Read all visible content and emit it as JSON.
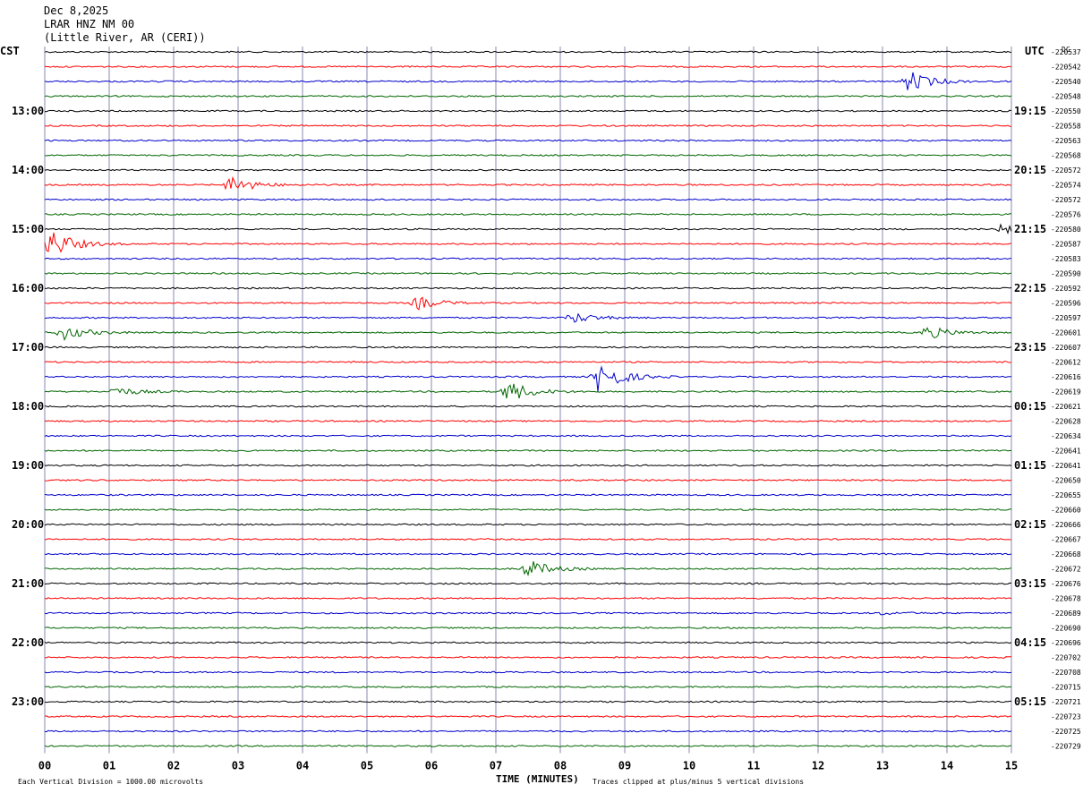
{
  "header": {
    "date": "Dec 8,2025",
    "station": "LRAR HNZ NM 00",
    "location": "(Little River, AR (CERI))"
  },
  "chart_data": {
    "type": "seismogram",
    "left_timezone_label": "CST",
    "right_timezone_label": "UTC",
    "dc_label": "DC",
    "xlabel": "TIME (MINUTES)",
    "x_ticks": [
      "00",
      "01",
      "02",
      "03",
      "04",
      "05",
      "06",
      "07",
      "08",
      "09",
      "10",
      "11",
      "12",
      "13",
      "14",
      "15"
    ],
    "xlim": [
      0,
      15
    ],
    "trace_colors": [
      "#000000",
      "#ff0000",
      "#0000cc",
      "#006600"
    ],
    "cst_hour_labels": [
      "13:00",
      "14:00",
      "15:00",
      "16:00",
      "17:00",
      "18:00",
      "19:00",
      "20:00",
      "21:00",
      "22:00",
      "23:00"
    ],
    "utc_hour_labels": [
      "19:15",
      "20:15",
      "21:15",
      "22:15",
      "23:15",
      "00:15",
      "01:15",
      "02:15",
      "03:15",
      "04:15",
      "05:15"
    ],
    "dc_offsets": [
      "-220537",
      "-220542",
      "-220540",
      "-220548",
      "-220550",
      "-220558",
      "-220563",
      "-220568",
      "-220572",
      "-220574",
      "-220572",
      "-220576",
      "-220580",
      "-220587",
      "-220583",
      "-220590",
      "-220592",
      "-220596",
      "-220597",
      "-220601",
      "-220607",
      "-220612",
      "-220616",
      "-220619",
      "-220621",
      "-220628",
      "-220634",
      "-220641",
      "-220641",
      "-220650",
      "-220655",
      "-220660",
      "-220666",
      "-220667",
      "-220668",
      "-220672",
      "-220676",
      "-220678",
      "-220689",
      "-220690",
      "-220696",
      "-220702",
      "-220708",
      "-220715",
      "-220721",
      "-220723",
      "-220725",
      "-220729"
    ],
    "events": [
      {
        "trace": 2,
        "minute": 13.4,
        "amplitude": 12
      },
      {
        "trace": 9,
        "minute": 2.9,
        "amplitude": 10
      },
      {
        "trace": 12,
        "minute": 14.9,
        "amplitude": 8
      },
      {
        "trace": 13,
        "minute": 0.1,
        "amplitude": 16
      },
      {
        "trace": 17,
        "minute": 5.8,
        "amplitude": 7
      },
      {
        "trace": 18,
        "minute": 8.2,
        "amplitude": 6
      },
      {
        "trace": 19,
        "minute": 0.3,
        "amplitude": 8
      },
      {
        "trace": 19,
        "minute": 13.7,
        "amplitude": 7
      },
      {
        "trace": 22,
        "minute": 8.6,
        "amplitude": 18
      },
      {
        "trace": 23,
        "minute": 7.2,
        "amplitude": 12
      },
      {
        "trace": 23,
        "minute": 1.1,
        "amplitude": 5
      },
      {
        "trace": 35,
        "minute": 7.5,
        "amplitude": 10
      },
      {
        "trace": 38,
        "minute": 13.0,
        "amplitude": 1.5
      }
    ],
    "footer_left": "Each Vertical Division = 1000.00 microvolts",
    "footer_right": "Traces clipped at plus/minus 5 vertical divisions"
  }
}
